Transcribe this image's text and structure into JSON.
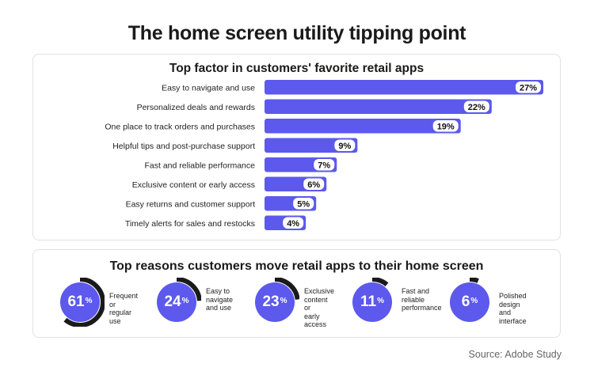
{
  "title": "The home screen utility tipping point",
  "source": "Source: Adobe Study",
  "colors": {
    "bar": "#5c59ec",
    "ring_track": "#1a1a1a",
    "ring_fill": "#5c59ec"
  },
  "chart_data": [
    {
      "type": "bar",
      "orientation": "horizontal",
      "title": "Top factor in customers' favorite retail apps",
      "categories": [
        "Easy to navigate and use",
        "Personalized deals and rewards",
        "One place to track orders and purchases",
        "Helpful tips and post-purchase support",
        "Fast and reliable performance",
        "Exclusive content or early access",
        "Easy returns and customer support",
        "Timely alerts for sales and restocks"
      ],
      "values": [
        27,
        22,
        19,
        9,
        7,
        6,
        5,
        4
      ],
      "value_labels": [
        "27%",
        "22%",
        "19%",
        "9%",
        "7%",
        "6%",
        "5%",
        "4%"
      ],
      "xlim": [
        0,
        27
      ]
    },
    {
      "type": "donut",
      "title": "Top reasons customers move retail apps to their home screen",
      "items": [
        {
          "value": 61,
          "value_text": "61",
          "unit": "%",
          "label": [
            "Frequent or",
            "regular use"
          ]
        },
        {
          "value": 24,
          "value_text": "24",
          "unit": "%",
          "label": [
            "Easy to",
            "navigate",
            "and use"
          ]
        },
        {
          "value": 23,
          "value_text": "23",
          "unit": "%",
          "label": [
            "Exclusive",
            "content or",
            "early access"
          ]
        },
        {
          "value": 11,
          "value_text": "11",
          "unit": "%",
          "label": [
            "Fast and",
            "reliable",
            "performance"
          ]
        },
        {
          "value": 6,
          "value_text": "6",
          "unit": "%",
          "label": [
            "Polished design",
            "and interface"
          ]
        }
      ]
    }
  ]
}
